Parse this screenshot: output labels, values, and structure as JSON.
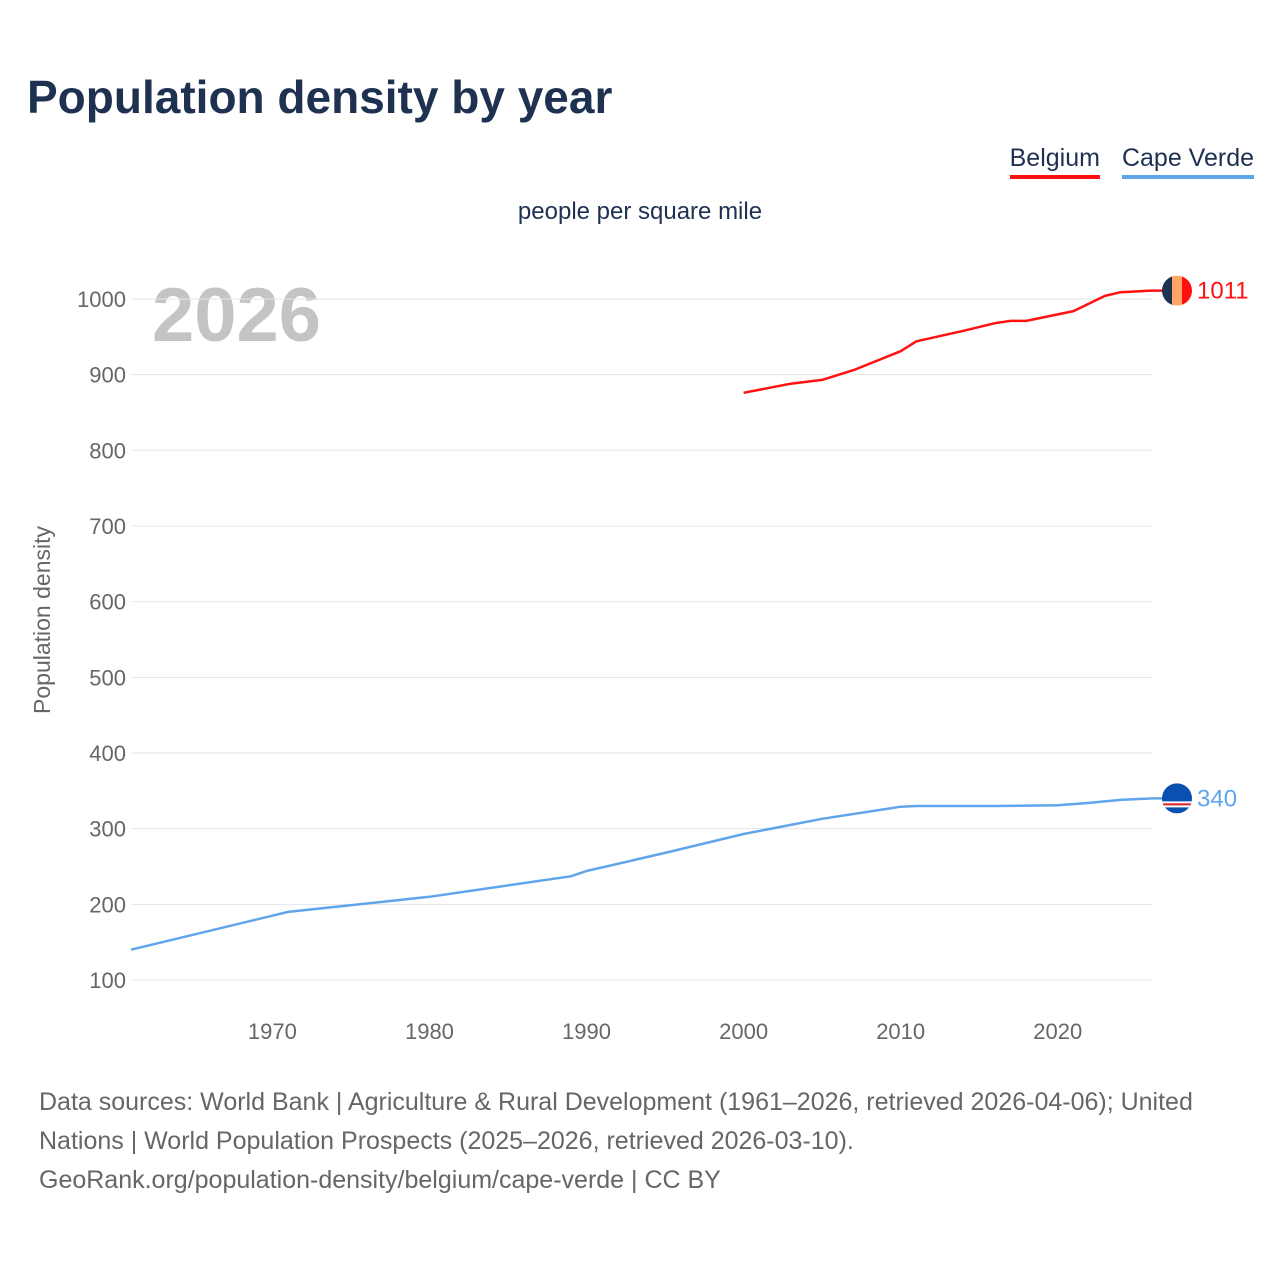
{
  "chart_data": {
    "type": "line",
    "title": "Population density by year",
    "subtitle": "people per square mile",
    "ylabel": "Population density",
    "xlabel": "",
    "year_watermark": "2026",
    "xlim": [
      1961,
      2026
    ],
    "ylim": [
      100,
      1050
    ],
    "x_ticks": [
      1970,
      1980,
      1990,
      2000,
      2010,
      2020
    ],
    "y_ticks": [
      100,
      200,
      300,
      400,
      500,
      600,
      700,
      800,
      900,
      1000
    ],
    "grid": true,
    "legend_position": "top-right",
    "series": [
      {
        "name": "Belgium",
        "color": "#ff1111",
        "end_label": "1011",
        "flag_colors": [
          "#1f3150",
          "#fca668",
          "#ff1111"
        ],
        "x": [
          2000,
          2003,
          2005,
          2007,
          2010,
          2011,
          2014,
          2016,
          2017,
          2018,
          2021,
          2023,
          2024,
          2026
        ],
        "y": [
          876,
          888,
          893,
          906,
          931,
          944,
          958,
          968,
          971,
          971,
          984,
          1004,
          1009,
          1011
        ]
      },
      {
        "name": "Cape Verde",
        "color": "#60a5ec",
        "end_label": "340",
        "flag_colors": [
          "#0a50b0",
          "#ffffff",
          "#e8202a"
        ],
        "x": [
          1961,
          1970,
          1971,
          1980,
          1989,
          1990,
          1995,
          2000,
          2005,
          2010,
          2011,
          2016,
          2020,
          2022,
          2024,
          2026
        ],
        "y": [
          140,
          185,
          190,
          210,
          237,
          244,
          268,
          293,
          313,
          329,
          330,
          330,
          331,
          334,
          338,
          340
        ]
      }
    ]
  },
  "footer": {
    "sources": "Data sources: World Bank | Agriculture & Rural Development (1961–2026, retrieved 2026-04-06); United Nations | World Population Prospects (2025–2026, retrieved 2026-03-10).",
    "link": "GeoRank.org/population-density/belgium/cape-verde | CC BY"
  }
}
